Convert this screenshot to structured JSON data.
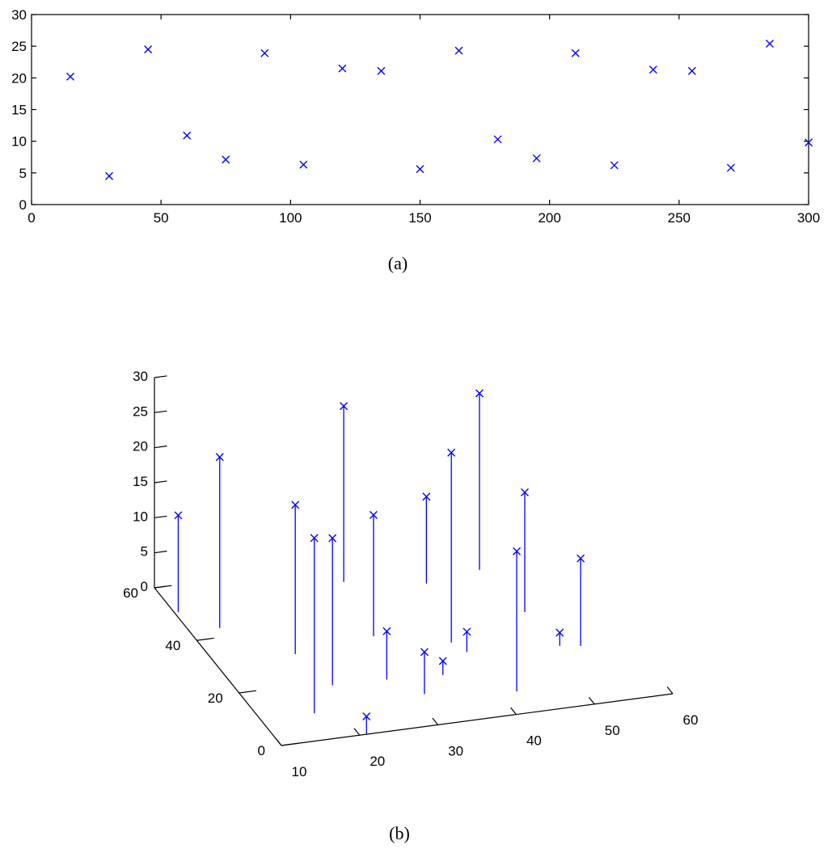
{
  "chart_data": [
    {
      "type": "scatter",
      "caption": "(a)",
      "marker": "x",
      "color": "#0000ff",
      "xlim": [
        0,
        300
      ],
      "ylim": [
        0,
        30
      ],
      "x_ticks": [
        0,
        50,
        100,
        150,
        200,
        250,
        300
      ],
      "y_ticks": [
        0,
        5,
        10,
        15,
        20,
        25,
        30
      ],
      "grid": false,
      "box": true,
      "points": [
        {
          "x": 15,
          "y": 20.2
        },
        {
          "x": 30,
          "y": 4.5
        },
        {
          "x": 45,
          "y": 24.5
        },
        {
          "x": 60,
          "y": 10.9
        },
        {
          "x": 75,
          "y": 7.1
        },
        {
          "x": 90,
          "y": 23.9
        },
        {
          "x": 105,
          "y": 6.3
        },
        {
          "x": 120,
          "y": 21.5
        },
        {
          "x": 135,
          "y": 21.1
        },
        {
          "x": 150,
          "y": 5.6
        },
        {
          "x": 165,
          "y": 24.3
        },
        {
          "x": 180,
          "y": 10.3
        },
        {
          "x": 195,
          "y": 7.3
        },
        {
          "x": 210,
          "y": 23.9
        },
        {
          "x": 225,
          "y": 6.2
        },
        {
          "x": 240,
          "y": 21.3
        },
        {
          "x": 255,
          "y": 21.1
        },
        {
          "x": 270,
          "y": 5.8
        },
        {
          "x": 285,
          "y": 25.4
        },
        {
          "x": 300,
          "y": 9.8
        }
      ]
    },
    {
      "type": "scatter3d-stem",
      "caption": "(b)",
      "marker": "x",
      "color": "#0000ff",
      "xlim": [
        10,
        60
      ],
      "ylim": [
        0,
        60
      ],
      "zlim": [
        0,
        30
      ],
      "x_ticks": [
        10,
        20,
        30,
        40,
        50,
        60
      ],
      "y_ticks": [
        0,
        20,
        40,
        60
      ],
      "z_ticks": [
        0,
        5,
        10,
        15,
        20,
        25,
        30
      ],
      "grid": false,
      "points": [
        {
          "x": 10.5,
          "y": 50.6,
          "z": 13.8
        },
        {
          "x": 13.8,
          "y": 43.2,
          "z": 24.4
        },
        {
          "x": 20.1,
          "y": 30.8,
          "z": 21.3
        },
        {
          "x": 32.4,
          "y": 53.4,
          "z": 25.1
        },
        {
          "x": 30.8,
          "y": 33.4,
          "z": 17.3
        },
        {
          "x": 41.8,
          "y": 49.1,
          "z": 12.4
        },
        {
          "x": 39.2,
          "y": 27.7,
          "z": 27.1
        },
        {
          "x": 49.2,
          "y": 51.4,
          "z": 25.2
        },
        {
          "x": 50.5,
          "y": 34.8,
          "z": 17.1
        },
        {
          "x": 21.5,
          "y": 18.4,
          "z": 21.0
        },
        {
          "x": 40.1,
          "y": 23.7,
          "z": 2.9
        },
        {
          "x": 28.3,
          "y": 17.9,
          "z": 6.9
        },
        {
          "x": 51.4,
          "y": 21.6,
          "z": 1.9
        },
        {
          "x": 16.8,
          "y": 9.6,
          "z": 25.0
        },
        {
          "x": 20.9,
          "y": 0.1,
          "z": 2.5
        },
        {
          "x": 31.3,
          "y": 11.2,
          "z": 6.0
        },
        {
          "x": 35.2,
          "y": 16.9,
          "z": 2.0
        },
        {
          "x": 42.2,
          "y": 7.9,
          "z": 20.0
        },
        {
          "x": 53.8,
          "y": 20.6,
          "z": 12.5
        }
      ]
    }
  ]
}
